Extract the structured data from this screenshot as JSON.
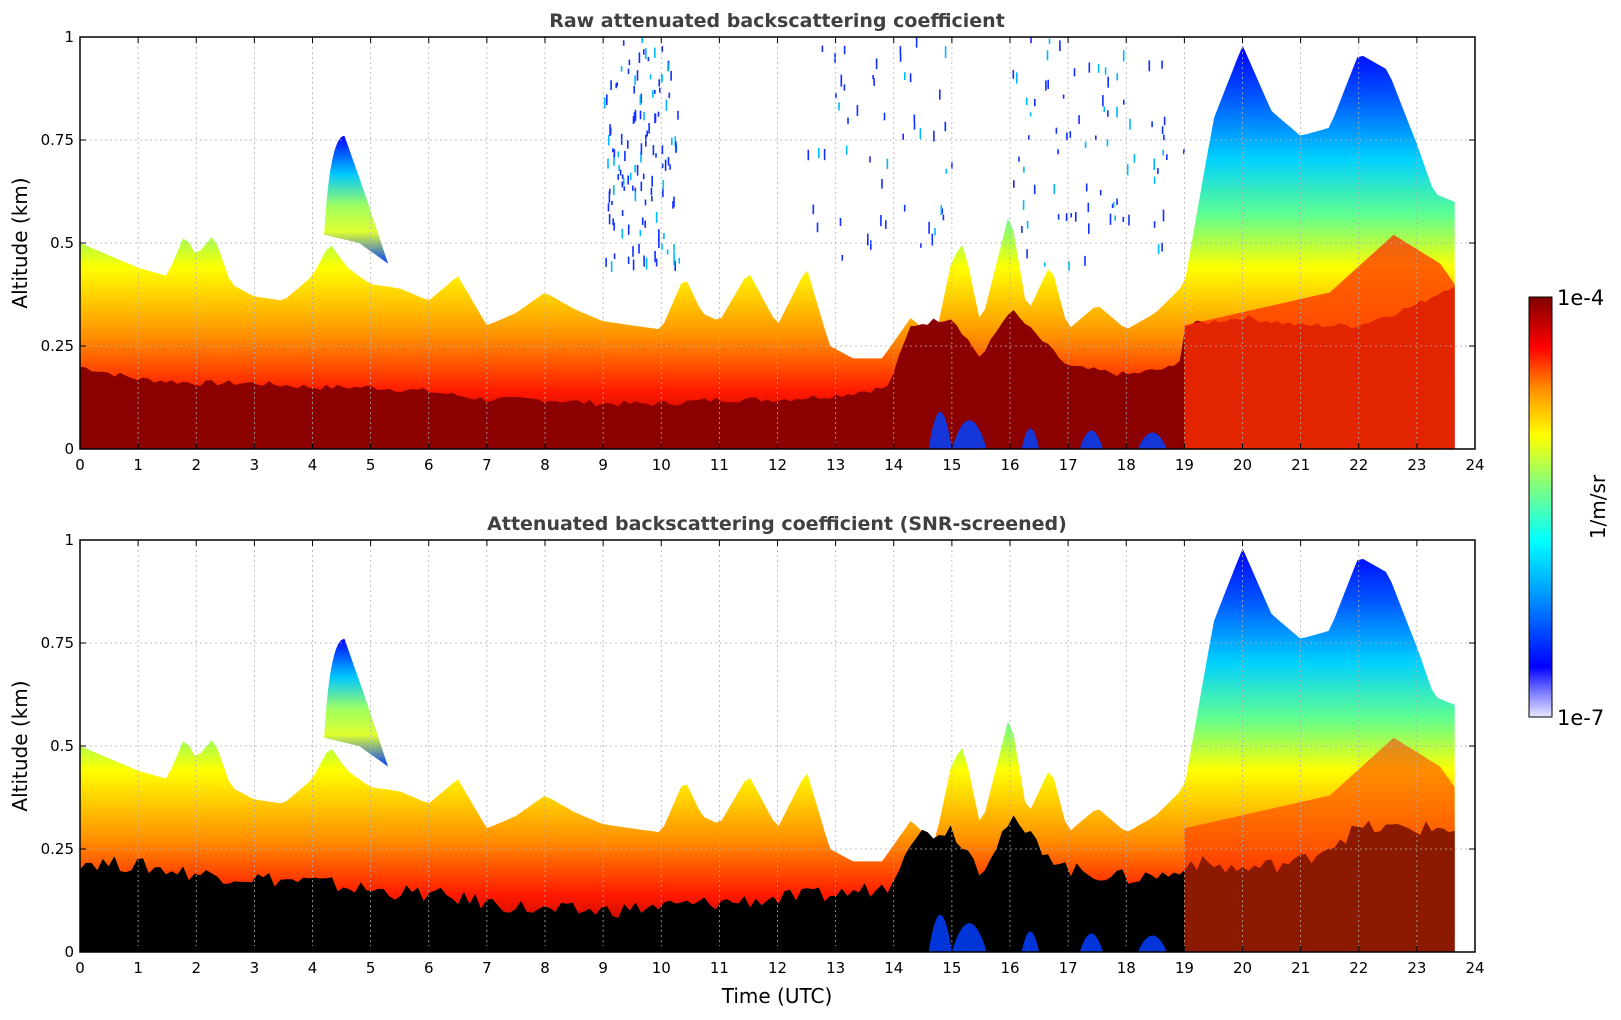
{
  "chart_data": [
    {
      "type": "heatmap",
      "title": "Raw attenuated backscattering coefficient",
      "xlabel": "",
      "ylabel": "Altitude (km)",
      "xlim": [
        0,
        24
      ],
      "ylim": [
        0,
        1
      ],
      "xticks": [
        "0",
        "1",
        "2",
        "3",
        "4",
        "5",
        "6",
        "7",
        "8",
        "9",
        "10",
        "11",
        "12",
        "13",
        "14",
        "15",
        "16",
        "17",
        "18",
        "19",
        "20",
        "21",
        "22",
        "23",
        "24"
      ],
      "yticks": [
        "0",
        "0.25",
        "0.5",
        "0.75",
        "1"
      ],
      "ytick_values": [
        0,
        0.25,
        0.5,
        0.75,
        1
      ],
      "grid": true,
      "data_end_hour": 23.65,
      "layer_top_km": [
        [
          0,
          0.5
        ],
        [
          0.5,
          0.47
        ],
        [
          1,
          0.44
        ],
        [
          1.5,
          0.42
        ],
        [
          1.8,
          0.52
        ],
        [
          2,
          0.47
        ],
        [
          2.3,
          0.52
        ],
        [
          2.6,
          0.4
        ],
        [
          3,
          0.37
        ],
        [
          3.5,
          0.36
        ],
        [
          4,
          0.42
        ],
        [
          4.3,
          0.5
        ],
        [
          4.6,
          0.44
        ],
        [
          5,
          0.4
        ],
        [
          5.5,
          0.39
        ],
        [
          6,
          0.36
        ],
        [
          6.5,
          0.42
        ],
        [
          7,
          0.3
        ],
        [
          7.5,
          0.33
        ],
        [
          8,
          0.38
        ],
        [
          8.5,
          0.34
        ],
        [
          9,
          0.31
        ],
        [
          9.5,
          0.3
        ],
        [
          10,
          0.29
        ],
        [
          10.4,
          0.42
        ],
        [
          10.7,
          0.33
        ],
        [
          11,
          0.31
        ],
        [
          11.5,
          0.43
        ],
        [
          12,
          0.3
        ],
        [
          12.5,
          0.44
        ],
        [
          12.9,
          0.25
        ],
        [
          13.3,
          0.22
        ],
        [
          13.8,
          0.22
        ],
        [
          14.3,
          0.32
        ],
        [
          14.7,
          0.26
        ],
        [
          15,
          0.46
        ],
        [
          15.2,
          0.5
        ],
        [
          15.5,
          0.3
        ],
        [
          16,
          0.58
        ],
        [
          16.3,
          0.33
        ],
        [
          16.7,
          0.45
        ],
        [
          17,
          0.29
        ],
        [
          17.5,
          0.35
        ],
        [
          18,
          0.29
        ],
        [
          18.5,
          0.33
        ],
        [
          19,
          0.4
        ],
        [
          19.5,
          0.8
        ],
        [
          20,
          0.98
        ],
        [
          20.5,
          0.82
        ],
        [
          21,
          0.76
        ],
        [
          21.5,
          0.78
        ],
        [
          22,
          0.96
        ],
        [
          22.5,
          0.92
        ],
        [
          23,
          0.74
        ],
        [
          23.3,
          0.62
        ],
        [
          23.65,
          0.6
        ]
      ],
      "core_top_km": [
        [
          0,
          0.2
        ],
        [
          1,
          0.17
        ],
        [
          2,
          0.16
        ],
        [
          3,
          0.16
        ],
        [
          4,
          0.15
        ],
        [
          5,
          0.15
        ],
        [
          6,
          0.14
        ],
        [
          7,
          0.12
        ],
        [
          8,
          0.12
        ],
        [
          9,
          0.11
        ],
        [
          10,
          0.11
        ],
        [
          11,
          0.12
        ],
        [
          12,
          0.12
        ],
        [
          13,
          0.13
        ],
        [
          13.9,
          0.15
        ],
        [
          14.3,
          0.3
        ],
        [
          15,
          0.32
        ],
        [
          15.5,
          0.22
        ],
        [
          16,
          0.34
        ],
        [
          17,
          0.2
        ],
        [
          18,
          0.18
        ],
        [
          18.9,
          0.2
        ],
        [
          19,
          0.3
        ],
        [
          20,
          0.32
        ],
        [
          21,
          0.3
        ],
        [
          22,
          0.3
        ],
        [
          23,
          0.35
        ],
        [
          23.65,
          0.4
        ]
      ],
      "plume": {
        "time_start": 4.2,
        "time_end": 5.3,
        "top_km": 0.76,
        "bottom_km": 0.5
      }
    },
    {
      "type": "heatmap",
      "title": "Attenuated backscattering coefficient (SNR-screened)",
      "xlabel": "Time (UTC)",
      "ylabel": "Altitude (km)",
      "xlim": [
        0,
        24
      ],
      "ylim": [
        0,
        1
      ],
      "xticks": [
        "0",
        "1",
        "2",
        "3",
        "4",
        "5",
        "6",
        "7",
        "8",
        "9",
        "10",
        "11",
        "12",
        "13",
        "14",
        "15",
        "16",
        "17",
        "18",
        "19",
        "20",
        "21",
        "22",
        "23",
        "24"
      ],
      "yticks": [
        "0",
        "0.25",
        "0.5",
        "0.75",
        "1"
      ],
      "ytick_values": [
        0,
        0.25,
        0.5,
        0.75,
        1
      ],
      "grid": true,
      "data_end_hour": 23.65,
      "screened_core_top_km": [
        [
          0,
          0.22
        ],
        [
          1,
          0.21
        ],
        [
          2,
          0.19
        ],
        [
          3,
          0.18
        ],
        [
          4,
          0.17
        ],
        [
          5,
          0.15
        ],
        [
          6,
          0.14
        ],
        [
          7,
          0.12
        ],
        [
          8,
          0.1
        ],
        [
          9,
          0.1
        ],
        [
          10,
          0.11
        ],
        [
          11,
          0.12
        ],
        [
          12,
          0.13
        ],
        [
          13,
          0.14
        ],
        [
          13.9,
          0.16
        ],
        [
          14.3,
          0.28
        ],
        [
          15,
          0.3
        ],
        [
          15.5,
          0.2
        ],
        [
          16,
          0.32
        ],
        [
          17,
          0.2
        ],
        [
          18,
          0.18
        ],
        [
          18.9,
          0.19
        ],
        [
          19,
          0.22
        ],
        [
          20,
          0.2
        ],
        [
          21,
          0.22
        ],
        [
          22,
          0.3
        ],
        [
          23,
          0.3
        ],
        [
          23.65,
          0.3
        ]
      ]
    }
  ],
  "colorbar": {
    "label": "1/m/sr",
    "max_label": "1e-4",
    "min_label": "1e-7",
    "scale": "log",
    "range": [
      1e-07,
      0.0001
    ]
  }
}
